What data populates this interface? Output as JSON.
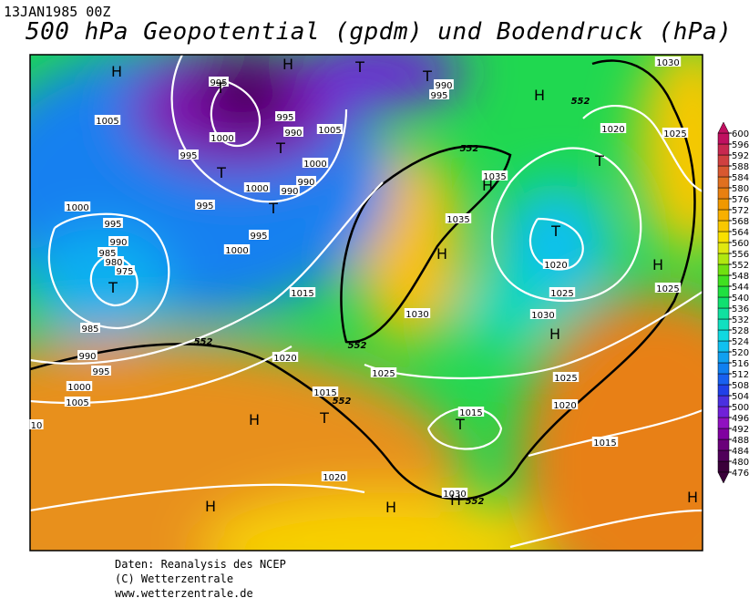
{
  "header": {
    "date": "13JAN1985 00Z",
    "title": "500 hPa Geopotential (gpdm) und Bodendruck (hPa)"
  },
  "map": {
    "labels": [
      "995",
      "1005",
      "1000",
      "995",
      "990",
      "1005",
      "995",
      "1000",
      "990",
      "1000",
      "990",
      "995",
      "995",
      "1000",
      "995",
      "990",
      "985",
      "980",
      "975",
      "1000",
      "985",
      "990",
      "995",
      "1000",
      "1005",
      "10",
      "1015",
      "1020",
      "1015",
      "1020",
      "1025",
      "1030",
      "1035",
      "1035",
      "1020",
      "1025",
      "1030",
      "1020",
      "1025",
      "1030",
      "1025",
      "1020",
      "1015",
      "1015",
      "1025",
      "1030",
      "990",
      "995",
      "552",
      "552",
      "552",
      "552",
      "552",
      "552",
      "H",
      "H",
      "T",
      "T",
      "T",
      "H",
      "T",
      "T",
      "T",
      "T",
      "H",
      "T",
      "T",
      "H",
      "H",
      "H",
      "T",
      "H",
      "T",
      "H",
      "H",
      "H",
      "H"
    ]
  },
  "colorbar": {
    "ticks": [
      476,
      480,
      484,
      488,
      492,
      496,
      500,
      504,
      508,
      512,
      516,
      520,
      524,
      528,
      532,
      536,
      540,
      544,
      548,
      552,
      556,
      560,
      564,
      568,
      572,
      576,
      580,
      584,
      588,
      592,
      596,
      600
    ],
    "colors": [
      "#3a003a",
      "#50005a",
      "#6a007a",
      "#8000a0",
      "#9010c0",
      "#7020d8",
      "#4a30e0",
      "#2040e8",
      "#1860f0",
      "#1080f0",
      "#10a0f0",
      "#10c0f0",
      "#10d8e0",
      "#10e0c0",
      "#10e0a0",
      "#10e070",
      "#20e040",
      "#40e020",
      "#70e010",
      "#b0e810",
      "#e0e810",
      "#f8e000",
      "#f8c800",
      "#f8b000",
      "#f09800",
      "#e88010",
      "#e07020",
      "#d85830",
      "#d04040",
      "#c82850",
      "#c01060"
    ]
  },
  "footer": {
    "lines": [
      "Daten: Reanalysis des NCEP",
      "(C) Wetterzentrale",
      "www.wetterzentrale.de"
    ]
  }
}
